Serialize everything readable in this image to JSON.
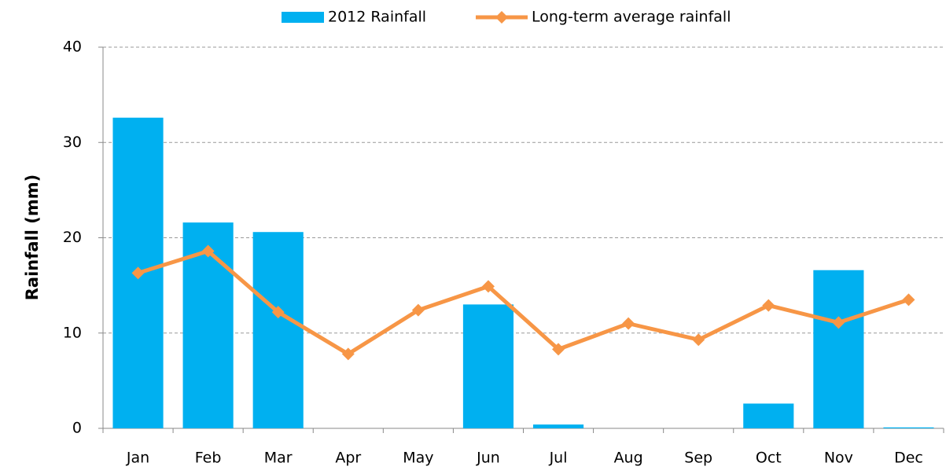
{
  "chart_data": {
    "type": "bar",
    "categories": [
      "Jan",
      "Feb",
      "Mar",
      "Apr",
      "May",
      "Jun",
      "Jul",
      "Aug",
      "Sep",
      "Oct",
      "Nov",
      "Dec"
    ],
    "series": [
      {
        "name": "2012 Rainfall",
        "type": "bar",
        "color": "#00b0f0",
        "values": [
          32.6,
          21.6,
          20.6,
          0,
          0,
          13,
          0.4,
          0,
          0,
          2.6,
          16.6,
          0.1
        ]
      },
      {
        "name": "Long-term average rainfall",
        "type": "line",
        "color": "#f79646",
        "values": [
          16.3,
          18.6,
          12.2,
          7.8,
          12.4,
          14.9,
          8.3,
          11.0,
          9.3,
          12.9,
          11.1,
          13.5
        ]
      }
    ],
    "y_label": "Rainfall (mm)",
    "ylim": [
      0,
      40
    ],
    "yticks": [
      0,
      10,
      20,
      30,
      40
    ],
    "grid": true,
    "legend": "top"
  }
}
